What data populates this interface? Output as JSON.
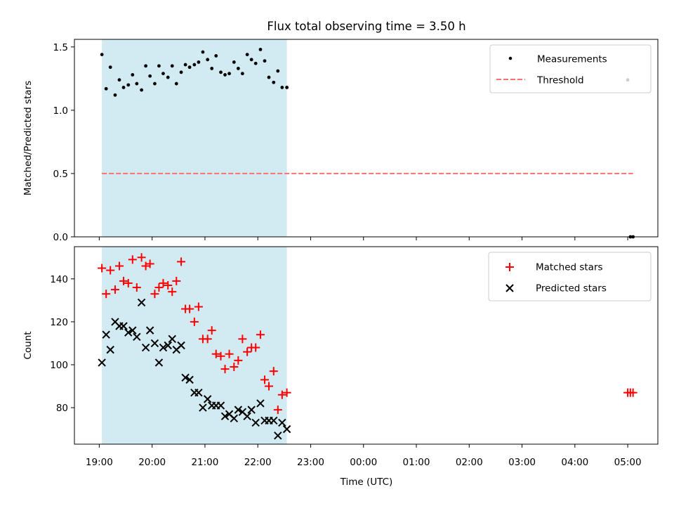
{
  "chart_data": {
    "type": "scatter",
    "title": "Flux total observing time = 3.50 h",
    "xlabel": "Time (UTC)",
    "x_unit": "hours since 19:00 UTC",
    "xlim": [
      -0.47,
      10.57
    ],
    "x_ticks": [
      {
        "value": 0,
        "label": "19:00"
      },
      {
        "value": 1,
        "label": "20:00"
      },
      {
        "value": 2,
        "label": "21:00"
      },
      {
        "value": 3,
        "label": "22:00"
      },
      {
        "value": 4,
        "label": "23:00"
      },
      {
        "value": 5,
        "label": "00:00"
      },
      {
        "value": 6,
        "label": "01:00"
      },
      {
        "value": 7,
        "label": "02:00"
      },
      {
        "value": 8,
        "label": "03:00"
      },
      {
        "value": 9,
        "label": "04:00"
      },
      {
        "value": 10,
        "label": "05:00"
      }
    ],
    "observing_window": {
      "start": 0.05,
      "end": 3.55,
      "color": "#add8e6"
    },
    "panels": [
      {
        "id": "ratio",
        "ylabel": "Matched/Predicted stars",
        "ylim": [
          0,
          1.56
        ],
        "yticks": [
          {
            "value": 0,
            "label": "0.0"
          },
          {
            "value": 0.5,
            "label": "0.5"
          },
          {
            "value": 1.0,
            "label": "1.0"
          },
          {
            "value": 1.5,
            "label": "1.5"
          }
        ],
        "legend": {
          "placement": "upper right",
          "entries": [
            "Measurements",
            "Threshold"
          ]
        },
        "series": [
          {
            "name": "Measurements",
            "marker": "dot",
            "color": "#000000",
            "x": [
              0.05,
              0.13,
              0.21,
              0.3,
              0.38,
              0.46,
              0.55,
              0.63,
              0.71,
              0.8,
              0.88,
              0.96,
              1.05,
              1.13,
              1.21,
              1.3,
              1.38,
              1.46,
              1.55,
              1.63,
              1.71,
              1.8,
              1.88,
              1.96,
              2.05,
              2.13,
              2.21,
              2.3,
              2.38,
              2.46,
              2.55,
              2.63,
              2.71,
              2.8,
              2.88,
              2.96,
              3.05,
              3.13,
              3.21,
              3.3,
              3.38,
              3.46,
              3.55,
              10.0,
              10.05,
              10.1
            ],
            "y": [
              1.44,
              1.17,
              1.34,
              1.12,
              1.24,
              1.18,
              1.2,
              1.28,
              1.21,
              1.16,
              1.35,
              1.27,
              1.21,
              1.35,
              1.29,
              1.26,
              1.35,
              1.21,
              1.3,
              1.36,
              1.34,
              1.36,
              1.38,
              1.46,
              1.4,
              1.33,
              1.43,
              1.3,
              1.28,
              1.29,
              1.38,
              1.33,
              1.29,
              1.44,
              1.4,
              1.37,
              1.48,
              1.39,
              1.26,
              1.22,
              1.31,
              1.18,
              1.18,
              1.24,
              0.0,
              0.0
            ]
          },
          {
            "name": "Threshold",
            "style": "dashed",
            "color": "#ff7070",
            "x": [
              0.05,
              10.1
            ],
            "y": [
              0.5,
              0.5
            ]
          }
        ]
      },
      {
        "id": "counts",
        "ylabel": "Count",
        "ylim": [
          63,
          155
        ],
        "yticks": [
          {
            "value": 80,
            "label": "80"
          },
          {
            "value": 100,
            "label": "100"
          },
          {
            "value": 120,
            "label": "120"
          },
          {
            "value": 140,
            "label": "140"
          }
        ],
        "legend": {
          "placement": "upper right",
          "entries": [
            "Matched stars",
            "Predicted stars"
          ]
        },
        "series": [
          {
            "name": "Matched stars",
            "marker": "plus",
            "color": "#ff0000",
            "x": [
              0.05,
              0.13,
              0.21,
              0.3,
              0.38,
              0.46,
              0.55,
              0.63,
              0.71,
              0.8,
              0.88,
              0.96,
              1.05,
              1.13,
              1.21,
              1.3,
              1.38,
              1.46,
              1.55,
              1.63,
              1.71,
              1.8,
              1.88,
              1.96,
              2.05,
              2.13,
              2.21,
              2.3,
              2.38,
              2.46,
              2.55,
              2.63,
              2.71,
              2.8,
              2.88,
              2.96,
              3.05,
              3.13,
              3.21,
              3.3,
              3.38,
              3.46,
              3.55,
              10.0,
              10.05,
              10.1
            ],
            "y": [
              145,
              133,
              144,
              135,
              146,
              139,
              138,
              149,
              136,
              150,
              146,
              147,
              133,
              136,
              138,
              137,
              134,
              139,
              148,
              126,
              126,
              120,
              127,
              112,
              112,
              116,
              105,
              104,
              98,
              105,
              99,
              102,
              112,
              106,
              108,
              108,
              114,
              93,
              90,
              97,
              79,
              86,
              87,
              87,
              87,
              87
            ]
          },
          {
            "name": "Predicted stars",
            "marker": "x",
            "color": "#000000",
            "x": [
              0.05,
              0.13,
              0.21,
              0.3,
              0.38,
              0.46,
              0.55,
              0.63,
              0.71,
              0.8,
              0.88,
              0.96,
              1.05,
              1.13,
              1.21,
              1.3,
              1.38,
              1.46,
              1.55,
              1.63,
              1.71,
              1.8,
              1.88,
              1.96,
              2.05,
              2.13,
              2.21,
              2.3,
              2.38,
              2.46,
              2.55,
              2.63,
              2.71,
              2.8,
              2.88,
              2.96,
              3.05,
              3.13,
              3.21,
              3.3,
              3.38,
              3.46,
              3.55
            ],
            "y": [
              101,
              114,
              107,
              120,
              118,
              118,
              115,
              116,
              113,
              129,
              108,
              116,
              110,
              101,
              108,
              109,
              112,
              107,
              109,
              94,
              93,
              87,
              87,
              80,
              84,
              81,
              81,
              81,
              76,
              77,
              75,
              79,
              78,
              76,
              79,
              73,
              82,
              74,
              74,
              74,
              67,
              73,
              70
            ]
          }
        ]
      }
    ]
  }
}
